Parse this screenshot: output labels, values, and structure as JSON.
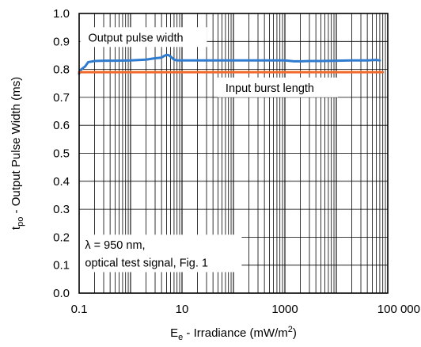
{
  "chart_data": {
    "type": "line",
    "x_scale": "log",
    "xlabel": "E",
    "xlabel_sub": "e",
    "xlabel_rest": " - Irradiance (mW/m",
    "xlabel_sup": "2",
    "xlabel_end": ")",
    "ylabel": "t",
    "ylabel_sub": "po",
    "ylabel_rest": " - Output Pulse Width (ms)",
    "xlim": [
      0.1,
      100000
    ],
    "ylim": [
      0,
      1.0
    ],
    "x_ticks": [
      {
        "value": 0.1,
        "label": "0.1"
      },
      {
        "value": 10,
        "label": "10"
      },
      {
        "value": 1000,
        "label": "1000"
      },
      {
        "value": 100000,
        "label": "100 000"
      }
    ],
    "y_ticks": [
      {
        "value": 0.0,
        "label": "0.0"
      },
      {
        "value": 0.1,
        "label": "0.1"
      },
      {
        "value": 0.2,
        "label": "0.2"
      },
      {
        "value": 0.3,
        "label": "0.3"
      },
      {
        "value": 0.4,
        "label": "0.4"
      },
      {
        "value": 0.5,
        "label": "0.5"
      },
      {
        "value": 0.6,
        "label": "0.6"
      },
      {
        "value": 0.7,
        "label": "0.7"
      },
      {
        "value": 0.8,
        "label": "0.8"
      },
      {
        "value": 0.9,
        "label": "0.9"
      },
      {
        "value": 1.0,
        "label": "1.0"
      }
    ],
    "grid": true,
    "series": [
      {
        "name": "Output pulse width",
        "color": "#2e7bcf",
        "x": [
          0.1,
          0.11,
          0.13,
          0.15,
          0.2,
          0.3,
          0.5,
          1,
          2,
          3,
          4,
          4.5,
          5,
          5.5,
          6,
          7,
          8,
          10,
          20,
          50,
          100,
          500,
          1000,
          1500,
          2000,
          3000,
          5000,
          10000,
          20000,
          40000,
          60000,
          70000
        ],
        "y": [
          0.785,
          0.8,
          0.81,
          0.826,
          0.83,
          0.831,
          0.831,
          0.832,
          0.835,
          0.84,
          0.842,
          0.848,
          0.852,
          0.851,
          0.846,
          0.835,
          0.832,
          0.832,
          0.832,
          0.832,
          0.832,
          0.832,
          0.832,
          0.829,
          0.829,
          0.83,
          0.83,
          0.831,
          0.832,
          0.832,
          0.834,
          0.832
        ]
      },
      {
        "name": "Input burst length",
        "color": "#f26a2a",
        "x": [
          0.1,
          80000
        ],
        "y": [
          0.79,
          0.79
        ]
      }
    ],
    "annotations": [
      {
        "text": "Output pulse width",
        "x": 0.15,
        "y": 0.9
      },
      {
        "text": "Input burst length",
        "x": 70,
        "y": 0.72
      },
      {
        "text": "λ = 950 nm,",
        "x": 0.13,
        "y": 0.158
      },
      {
        "text": "optical test signal, Fig. 1",
        "x": 0.13,
        "y": 0.095
      }
    ]
  }
}
